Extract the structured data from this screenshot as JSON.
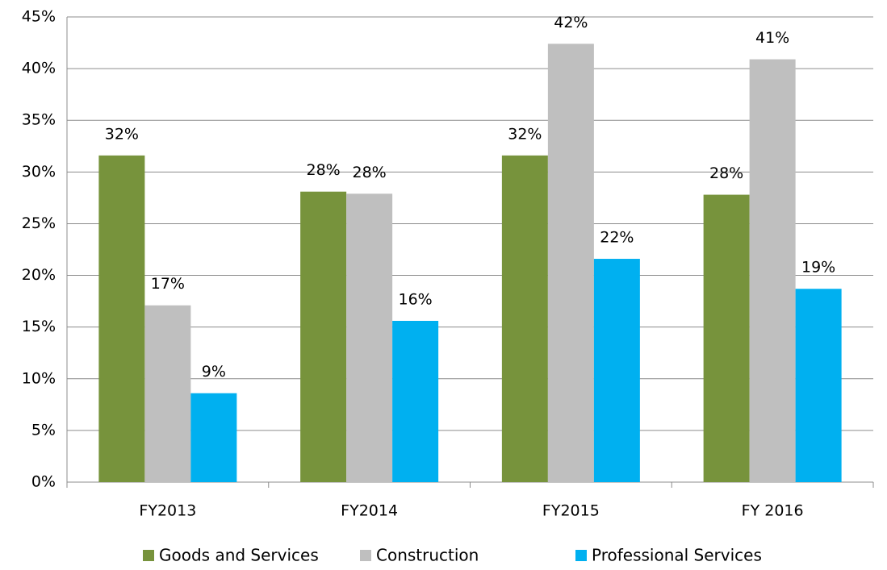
{
  "chart_data": {
    "type": "bar",
    "categories": [
      "FY2013",
      "FY2014",
      "FY2015",
      "FY 2016"
    ],
    "series": [
      {
        "name": "Goods and Services",
        "color": "#77933c",
        "values": [
          31.6,
          28.1,
          31.6,
          27.8
        ],
        "value_labels": [
          "32%",
          "28%",
          "32%",
          "28%"
        ]
      },
      {
        "name": "Construction",
        "color": "#bfbfbf",
        "values": [
          17.1,
          27.9,
          42.4,
          40.9
        ],
        "value_labels": [
          "17%",
          "28%",
          "42%",
          "41%"
        ]
      },
      {
        "name": "Professional Services",
        "color": "#00b0f0",
        "values": [
          8.6,
          15.6,
          21.6,
          18.7
        ],
        "value_labels": [
          "9%",
          "16%",
          "22%",
          "19%"
        ]
      }
    ],
    "ylim": [
      0,
      45
    ],
    "yticks": [
      {
        "value": 0,
        "label": "0%"
      },
      {
        "value": 5,
        "label": "5%"
      },
      {
        "value": 10,
        "label": "10%"
      },
      {
        "value": 15,
        "label": "15%"
      },
      {
        "value": 20,
        "label": "20%"
      },
      {
        "value": 25,
        "label": "25%"
      },
      {
        "value": 30,
        "label": "30%"
      },
      {
        "value": 35,
        "label": "35%"
      },
      {
        "value": 40,
        "label": "40%"
      },
      {
        "value": 45,
        "label": "45%"
      }
    ],
    "grid": true,
    "legend": "bottom"
  }
}
